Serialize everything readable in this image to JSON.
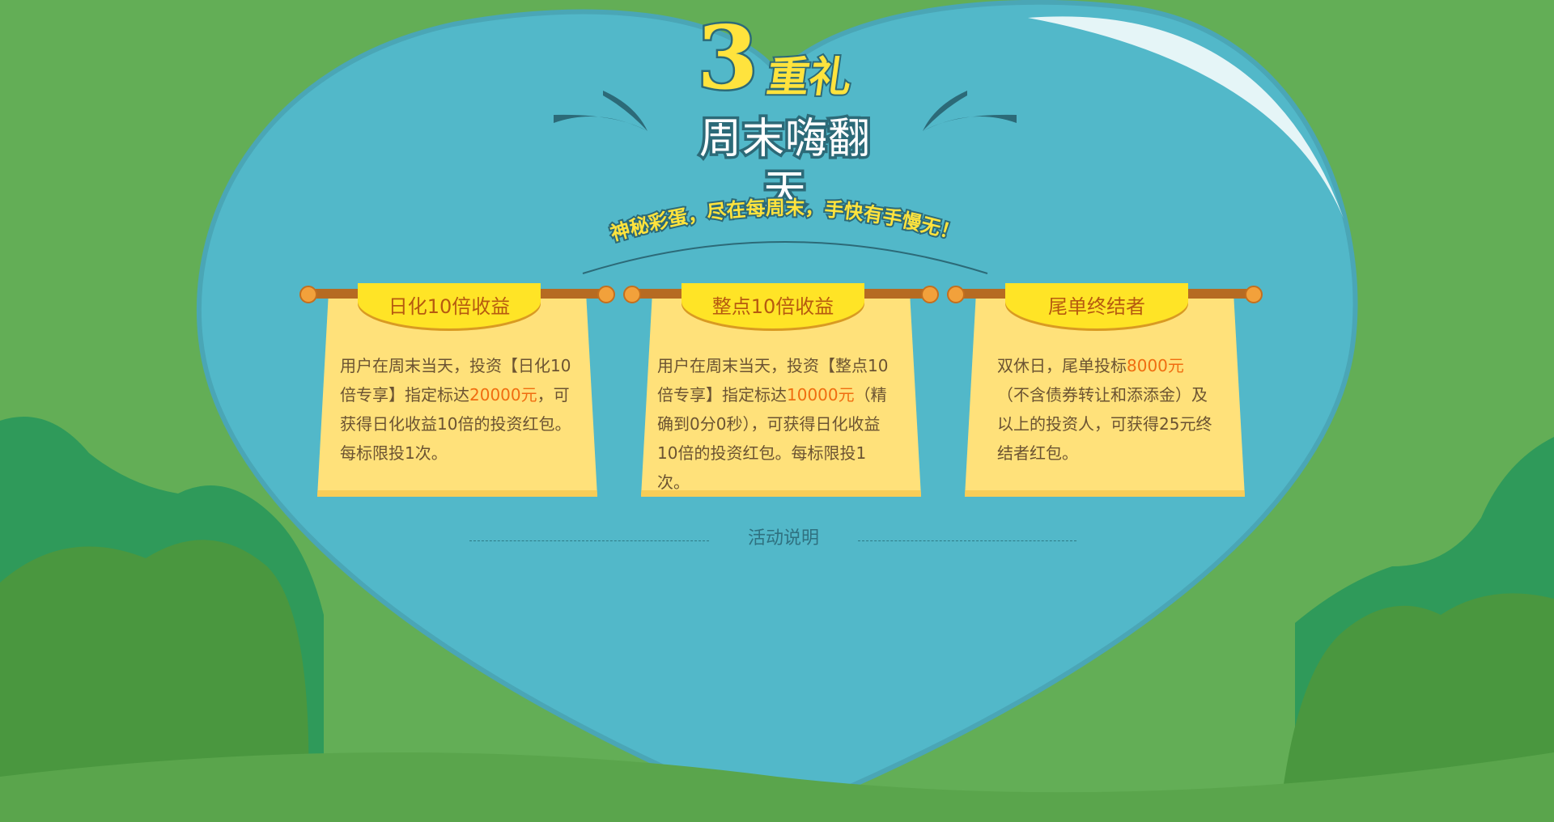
{
  "colors": {
    "bg_green": "#63ae56",
    "heart_blue": "#52b8c9",
    "title_yellow": "#ffe33d",
    "title_outline": "#2c6a78",
    "card_paper": "#ffe17a",
    "banner_yellow": "#ffe426",
    "highlight_orange": "#f06d10",
    "card_text": "#6b5332"
  },
  "header": {
    "number": "3",
    "gift": "重礼",
    "title": "周末嗨翻天",
    "slogan": "神秘彩蛋，尽在每周末，手快有手慢无！"
  },
  "cards": [
    {
      "title": "日化10倍收益",
      "desc": [
        {
          "text": "用户在周末当天，投资【日化10倍专享】指定标达"
        },
        {
          "text": "20000元",
          "highlight": true
        },
        {
          "text": "，可获得日化收益10倍的投资红包。每标限投1次。"
        }
      ]
    },
    {
      "title": "整点10倍收益",
      "desc": [
        {
          "text": "用户在周末当天，投资【整点10倍专享】指定标达"
        },
        {
          "text": "10000元",
          "highlight": true
        },
        {
          "text": "（精确到0分0秒），可获得日化收益10倍的投资红包。每标限投1次。"
        }
      ]
    },
    {
      "title": "尾单终结者",
      "desc": [
        {
          "text": "双休日，尾单投标"
        },
        {
          "text": "8000元",
          "highlight": true
        },
        {
          "text": "（不含债券转让和添添金）及以上的投资人，可获得25元终结者红包。"
        }
      ]
    }
  ],
  "footer": {
    "activity_label": "活动说明"
  }
}
